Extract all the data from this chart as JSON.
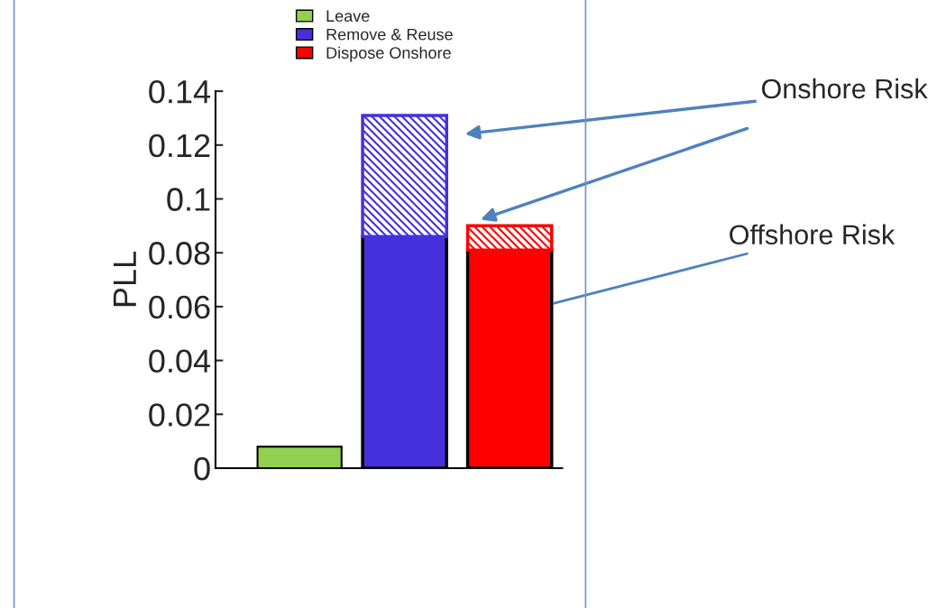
{
  "chart_data": {
    "type": "bar",
    "stacked": true,
    "ylabel": "PLL",
    "categories": [
      null,
      null,
      null
    ],
    "tick_labels": "y",
    "ylim": [
      0,
      0.14
    ],
    "yticks": [
      0,
      0.02,
      0.04,
      0.06,
      0.08,
      0.1,
      0.12,
      0.14
    ],
    "grid": false,
    "legend": "top",
    "annotations": [
      "Offshore Risk"
    ],
    "series": [
      {
        "name": "Leave",
        "color": "#92d050",
        "values": [
          0.008,
          null,
          null
        ]
      },
      {
        "name": "Remove & Reuse",
        "color": "#4630dc",
        "values": [
          null,
          0.086,
          null
        ]
      },
      {
        "name": "Dispose Onshore",
        "color": "#ff0000",
        "values": [
          null,
          null,
          0.081
        ]
      },
      {
        "name": "Onshore Risk",
        "colors": [
          null,
          "#4630dc",
          "#ff0000"
        ],
        "values": [
          null,
          0.045,
          0.009
        ]
      }
    ]
  }
}
